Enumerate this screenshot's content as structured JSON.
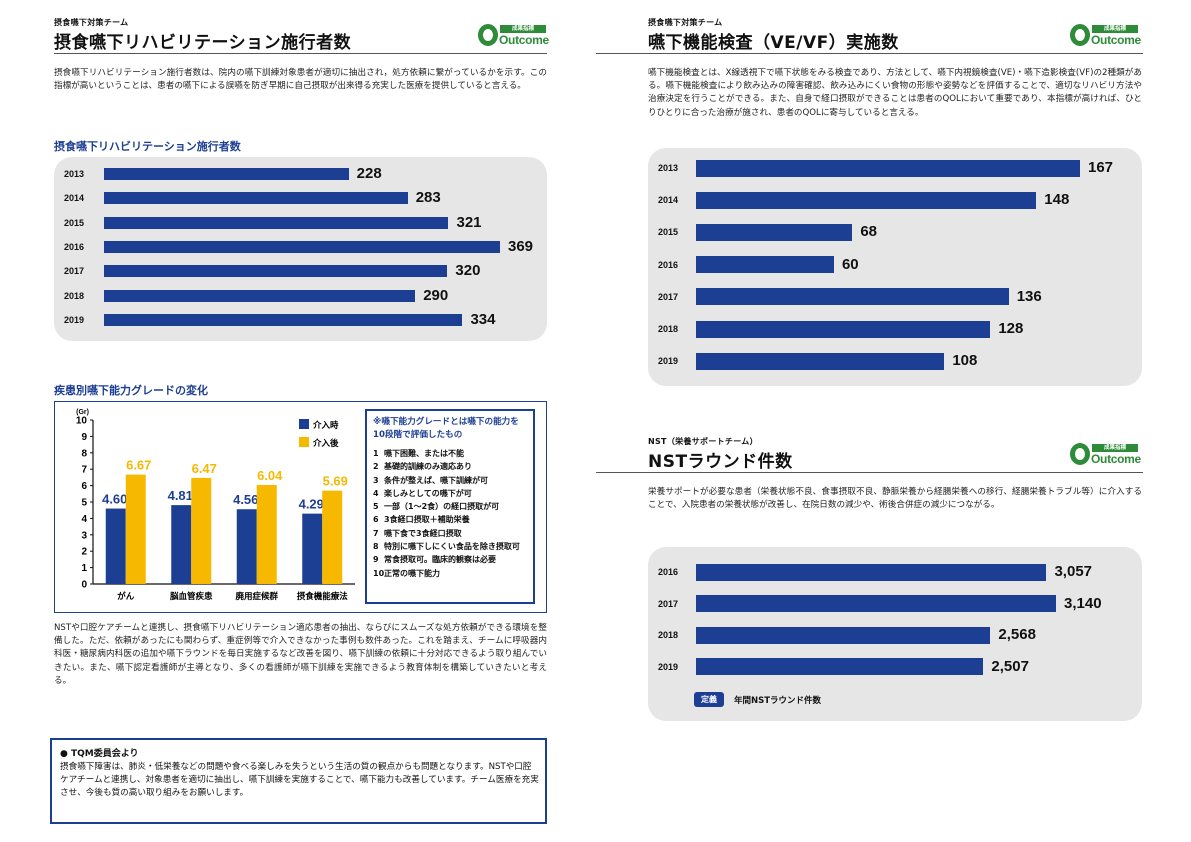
{
  "left": {
    "section_label": "摂食嚥下対策チーム",
    "title": "摂食嚥下リハビリテーション施行者数",
    "logo": {
      "badge": "成果指標",
      "word": "Outcome"
    },
    "intro": "摂食嚥下リハビリテーション施行者数は、院内の嚥下訓練対象患者が適切に抽出され，処方依頼に繋がっているかを示す。この指標が高いということは、患者の嚥下による誤嚥を防ぎ早期に自己摂取が出来得る充実した医療を提供していると言える。",
    "chart1": {
      "heading": "摂食嚥下リハビリテーション施行者数",
      "chart_data": {
        "type": "bar",
        "orientation": "horizontal",
        "categories": [
          "2013",
          "2014",
          "2015",
          "2016",
          "2017",
          "2018",
          "2019"
        ],
        "values": [
          228,
          283,
          321,
          369,
          320,
          290,
          334
        ],
        "value_labels": [
          "228",
          "283",
          "321",
          "369",
          "320",
          "290",
          "334"
        ],
        "color": "#1d3f93"
      }
    },
    "chart2": {
      "heading": "疾患別嚥下能力グレードの変化",
      "chart_data": {
        "type": "bar",
        "categories": [
          "がん",
          "脳血管疾患",
          "廃用症候群",
          "摂食機能療法"
        ],
        "series": [
          {
            "name": "介入時",
            "values": [
              4.6,
              4.81,
              4.56,
              4.29
            ],
            "labels": [
              "4.60",
              "4.81",
              "4.56",
              "4.29"
            ],
            "color": "#1d3f93"
          },
          {
            "name": "介入後",
            "values": [
              6.67,
              6.47,
              6.04,
              5.69
            ],
            "labels": [
              "6.67",
              "6.47",
              "6.04",
              "5.69"
            ],
            "color": "#f7b900"
          }
        ],
        "yunit": "(Gr)",
        "ylim": [
          0,
          10
        ],
        "yticks": [
          "0",
          "1",
          "2",
          "3",
          "4",
          "5",
          "6",
          "7",
          "8",
          "9",
          "10"
        ],
        "legend": "top-right"
      },
      "grade_box": {
        "title": "※嚥下能力グレードとは嚥下の能力を10段階で評価したもの",
        "items": [
          {
            "n": "1",
            "t": "嚥下困難、または不能"
          },
          {
            "n": "2",
            "t": "基礎的訓練のみ適応あり"
          },
          {
            "n": "3",
            "t": "条件が整えば、嚥下訓練が可"
          },
          {
            "n": "4",
            "t": "楽しみとしての嚥下が可"
          },
          {
            "n": "5",
            "t": "一部（1〜2食）の経口摂取が可"
          },
          {
            "n": "6",
            "t": "3食経口摂取＋補助栄養"
          },
          {
            "n": "7",
            "t": "嚥下食で3食経口摂取"
          },
          {
            "n": "8",
            "t": "特別に嚥下しにくい食品を除き摂取可"
          },
          {
            "n": "9",
            "t": "常食摂取可。臨床的観察は必要"
          },
          {
            "n": "10",
            "t": "正常の嚥下能力"
          }
        ]
      }
    },
    "body": "NSTや口腔ケアチームと連携し、摂食嚥下リハビリテーション適応患者の抽出、ならびにスムーズな処方依頼ができる環境を整備した。ただ、依頼があったにも関わらず、重症例等で介入できなかった事例も数件あった。これを踏まえ、チームに呼吸器内科医・糖尿病内科医の追加や嚥下ラウンドを毎日実施するなど改善を図り、嚥下訓練の依頼に十分対応できるよう取り組んでいきたい。また、嚥下認定看護師が主導となり、多くの看護師が嚥下訓練を実施できるよう教育体制を構築していきたいと考える。",
    "tqm": {
      "heading": "● TQM委員会より",
      "text": "摂食嚥下障害は、肺炎・低栄養などの問題や食べる楽しみを失うという生活の質の観点からも問題となります。NSTや口腔ケアチームと連携し、対象患者を適切に抽出し、嚥下訓練を実施することで、嚥下能力も改善しています。チーム医療を充実させ、今後も質の高い取り組みをお願いします。"
    }
  },
  "right": {
    "top": {
      "section_label": "摂食嚥下対策チーム",
      "title": "嚥下機能検査（VE/VF）実施数",
      "logo": {
        "badge": "成果指標",
        "word": "Outcome"
      },
      "intro": "嚥下機能検査とは、X線透視下で嚥下状態をみる検査であり、方法として、嚥下内視鏡検査(VE)・嚥下造影検査(VF)の2種類がある。嚥下機能検査により飲み込みの障害確認、飲み込みにくい食物の形態や姿勢などを評価することで、適切なリハビリ方法や治療決定を行うことができる。また、自身で経口摂取ができることは患者のQOLにおいて重要であり、本指標が高ければ、ひとりひとりに合った治療が施され、患者のQOLに寄与していると言える。",
      "chart_data": {
        "type": "bar",
        "orientation": "horizontal",
        "categories": [
          "2013",
          "2014",
          "2015",
          "2016",
          "2017",
          "2018",
          "2019"
        ],
        "values": [
          167,
          148,
          68,
          60,
          136,
          128,
          108
        ],
        "value_labels": [
          "167",
          "148",
          "68",
          "60",
          "136",
          "128",
          "108"
        ],
        "color": "#1d3f93"
      }
    },
    "bottom": {
      "section_label": "NST（栄養サポートチーム）",
      "title": "NSTラウンド件数",
      "logo": {
        "badge": "成果指標",
        "word": "Outcome"
      },
      "intro": "栄養サポートが必要な患者（栄養状態不良、食事摂取不良、静脈栄養から経腸栄養への移行、経腸栄養トラブル等）に介入することで、入院患者の栄養状態が改善し、在院日数の減少や、術後合併症の減少につながる。",
      "chart_data": {
        "type": "bar",
        "orientation": "horizontal",
        "categories": [
          "2016",
          "2017",
          "2018",
          "2019"
        ],
        "values": [
          3057,
          3140,
          2568,
          2507
        ],
        "value_labels": [
          "3,057",
          "3,140",
          "2,568",
          "2,507"
        ],
        "color": "#1d3f93"
      },
      "definition": {
        "tag": "定義",
        "text": "年間NSTラウンド件数"
      }
    }
  }
}
